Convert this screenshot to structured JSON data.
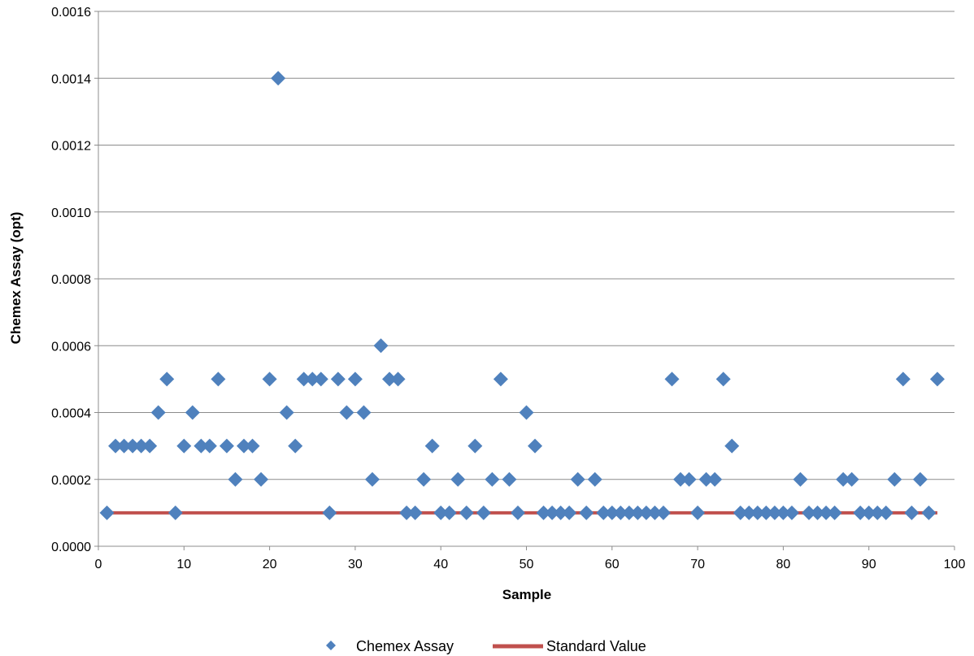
{
  "chart_data": {
    "type": "scatter",
    "title": "",
    "xlabel": "Sample",
    "ylabel": "Chemex Assay (opt)",
    "xlim": [
      0,
      100
    ],
    "ylim": [
      0,
      0.0016
    ],
    "x_ticks": [
      "0",
      "10",
      "20",
      "30",
      "40",
      "50",
      "60",
      "70",
      "80",
      "90",
      "100"
    ],
    "y_ticks": [
      "0.0000",
      "0.0002",
      "0.0004",
      "0.0006",
      "0.0008",
      "0.0010",
      "0.0012",
      "0.0014",
      "0.0016"
    ],
    "grid": "horizontal",
    "legend_position": "bottom",
    "series": [
      {
        "name": "Chemex Assay",
        "kind": "scatter",
        "marker": "diamond",
        "color": "#4F81BD",
        "x": [
          1,
          2,
          3,
          4,
          5,
          6,
          7,
          8,
          9,
          10,
          11,
          12,
          13,
          14,
          15,
          16,
          17,
          18,
          19,
          20,
          21,
          22,
          23,
          24,
          25,
          26,
          27,
          28,
          29,
          30,
          31,
          32,
          33,
          34,
          35,
          36,
          37,
          38,
          39,
          40,
          41,
          42,
          43,
          44,
          45,
          46,
          47,
          48,
          49,
          50,
          51,
          52,
          53,
          54,
          55,
          56,
          57,
          58,
          59,
          60,
          61,
          62,
          63,
          64,
          65,
          66,
          67,
          68,
          69,
          70,
          71,
          72,
          73,
          74,
          75,
          76,
          77,
          78,
          79,
          80,
          81,
          82,
          83,
          84,
          85,
          86,
          87,
          88,
          89,
          90,
          91,
          92,
          93,
          94,
          95,
          96,
          97,
          98
        ],
        "y": [
          0.0001,
          0.0003,
          0.0003,
          0.0003,
          0.0003,
          0.0003,
          0.0004,
          0.0005,
          0.0001,
          0.0003,
          0.0004,
          0.0003,
          0.0003,
          0.0005,
          0.0003,
          0.0002,
          0.0003,
          0.0003,
          0.0002,
          0.0005,
          0.0014,
          0.0004,
          0.0003,
          0.0005,
          0.0005,
          0.0005,
          0.0001,
          0.0005,
          0.0004,
          0.0005,
          0.0004,
          0.0002,
          0.0006,
          0.0005,
          0.0005,
          0.0001,
          0.0001,
          0.0002,
          0.0003,
          0.0001,
          0.0001,
          0.0002,
          0.0001,
          0.0003,
          0.0001,
          0.0002,
          0.0005,
          0.0002,
          0.0001,
          0.0004,
          0.0003,
          0.0001,
          0.0001,
          0.0001,
          0.0001,
          0.0002,
          0.0001,
          0.0002,
          0.0001,
          0.0001,
          0.0001,
          0.0001,
          0.0001,
          0.0001,
          0.0001,
          0.0001,
          0.0005,
          0.0002,
          0.0002,
          0.0001,
          0.0002,
          0.0002,
          0.0005,
          0.0003,
          0.0001,
          0.0001,
          0.0001,
          0.0001,
          0.0001,
          0.0001,
          0.0001,
          0.0002,
          0.0001,
          0.0001,
          0.0001,
          0.0001,
          0.0002,
          0.0002,
          0.0001,
          0.0001,
          0.0001,
          0.0001,
          0.0002,
          0.0005,
          0.0001,
          0.0002,
          0.0001,
          0.0005
        ]
      },
      {
        "name": "Standard Value",
        "kind": "line",
        "color": "#C0504D",
        "x": [
          1,
          98
        ],
        "y": [
          0.0001,
          0.0001
        ]
      }
    ]
  }
}
